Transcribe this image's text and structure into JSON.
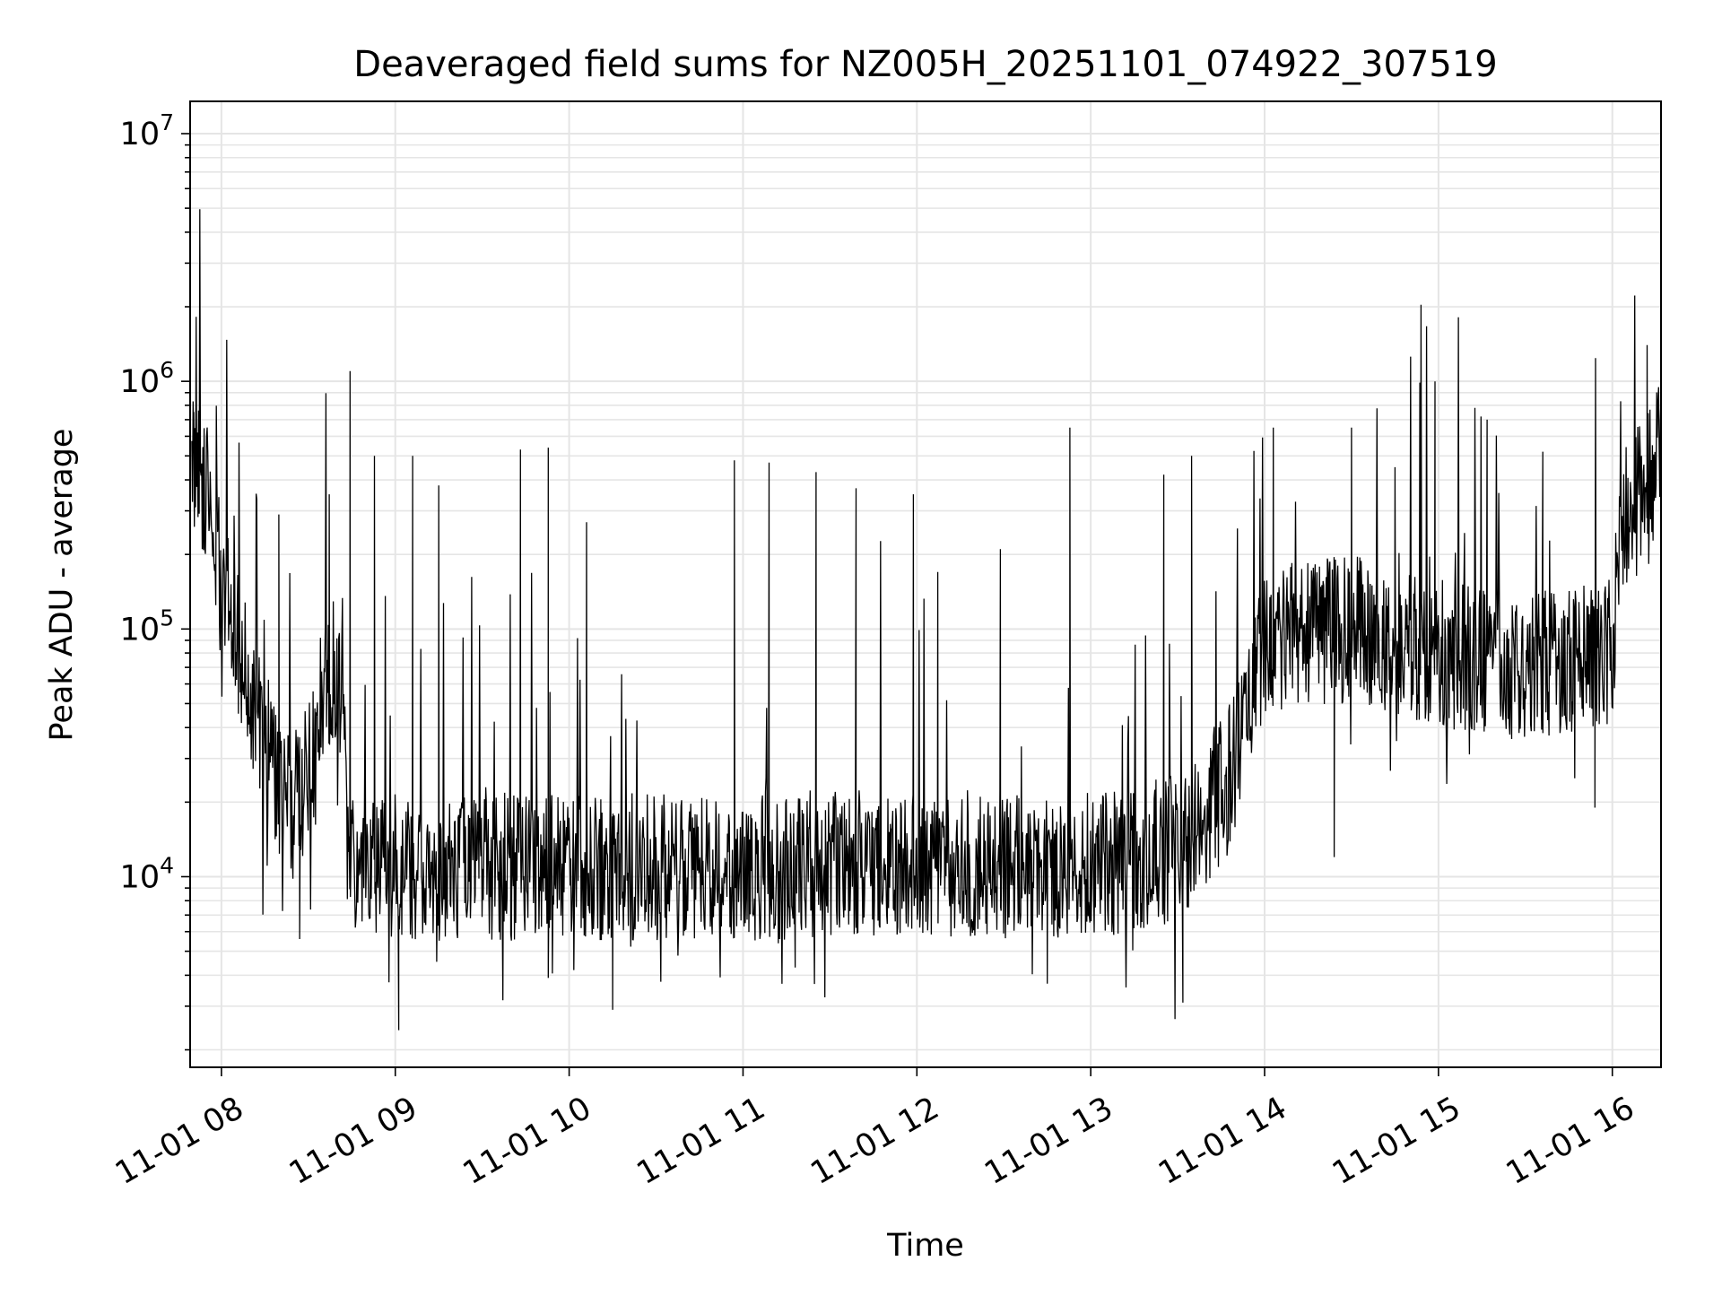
{
  "chart_data": {
    "type": "line",
    "title": "Deaveraged field sums for NZ005H_20251101_074922_307519",
    "xlabel": "Time",
    "ylabel": "Peak ADU - average",
    "yscale": "log",
    "grid": true,
    "line_color": "#000000",
    "grid_color": "#e5e5e5",
    "xlim": [
      7.82,
      16.28
    ],
    "ylim": [
      1700.0,
      13500000.0
    ],
    "x_ticks": [
      {
        "value": 8,
        "label": "11-01 08"
      },
      {
        "value": 9,
        "label": "11-01 09"
      },
      {
        "value": 10,
        "label": "11-01 10"
      },
      {
        "value": 11,
        "label": "11-01 11"
      },
      {
        "value": 12,
        "label": "11-01 12"
      },
      {
        "value": 13,
        "label": "11-01 13"
      },
      {
        "value": 14,
        "label": "11-01 14"
      },
      {
        "value": 15,
        "label": "11-01 15"
      },
      {
        "value": 16,
        "label": "11-01 16"
      }
    ],
    "y_ticks": [
      {
        "value": 10000,
        "base": "10",
        "exp": "4"
      },
      {
        "value": 100000,
        "base": "10",
        "exp": "5"
      },
      {
        "value": 1000000,
        "base": "10",
        "exp": "6"
      },
      {
        "value": 10000000,
        "base": "10",
        "exp": "7"
      }
    ],
    "series": [
      {
        "name": "deaveraged field sum",
        "x_unit": "hour of 2025-11-01",
        "baseline_anchors": [
          [
            7.83,
            500000
          ],
          [
            7.9,
            400000
          ],
          [
            8.0,
            150000
          ],
          [
            8.1,
            80000
          ],
          [
            8.2,
            45000
          ],
          [
            8.3,
            28000
          ],
          [
            8.4,
            18000
          ],
          [
            8.5,
            25000
          ],
          [
            8.6,
            70000
          ],
          [
            8.7,
            60000
          ],
          [
            8.72,
            12000
          ],
          [
            9.0,
            11000
          ],
          [
            10.0,
            11000
          ],
          [
            11.0,
            11000
          ],
          [
            12.0,
            11500
          ],
          [
            13.0,
            11000
          ],
          [
            13.5,
            13000
          ],
          [
            13.8,
            25000
          ],
          [
            14.0,
            90000
          ],
          [
            14.5,
            100000
          ],
          [
            15.0,
            80000
          ],
          [
            15.5,
            70000
          ],
          [
            16.0,
            80000
          ],
          [
            16.05,
            250000
          ],
          [
            16.28,
            500000
          ]
        ],
        "spikes": [
          [
            7.84,
            600000
          ],
          [
            8.33,
            290000
          ],
          [
            8.62,
            350000
          ],
          [
            8.74,
            1100000
          ],
          [
            8.88,
            500000
          ],
          [
            9.1,
            500000
          ],
          [
            9.25,
            380000
          ],
          [
            9.72,
            530000
          ],
          [
            9.88,
            540000
          ],
          [
            10.1,
            270000
          ],
          [
            10.95,
            480000
          ],
          [
            11.15,
            470000
          ],
          [
            11.42,
            430000
          ],
          [
            11.65,
            370000
          ],
          [
            11.98,
            350000
          ],
          [
            12.12,
            170000
          ],
          [
            12.48,
            210000
          ],
          [
            12.88,
            650000
          ],
          [
            13.42,
            420000
          ],
          [
            13.58,
            500000
          ],
          [
            14.05,
            650000
          ],
          [
            14.5,
            650000
          ],
          [
            14.75,
            450000
          ],
          [
            14.98,
            1000000
          ],
          [
            15.28,
            700000
          ],
          [
            15.6,
            520000
          ],
          [
            16.2,
            1400000
          ]
        ],
        "dips": [
          [
            9.02,
            2400
          ],
          [
            9.88,
            3900
          ],
          [
            10.25,
            2900
          ],
          [
            11.3,
            4300
          ],
          [
            12.75,
            3700
          ],
          [
            13.53,
            3100
          ],
          [
            8.45,
            5600
          ],
          [
            14.4,
            12000
          ],
          [
            15.9,
            19000
          ]
        ]
      }
    ]
  }
}
